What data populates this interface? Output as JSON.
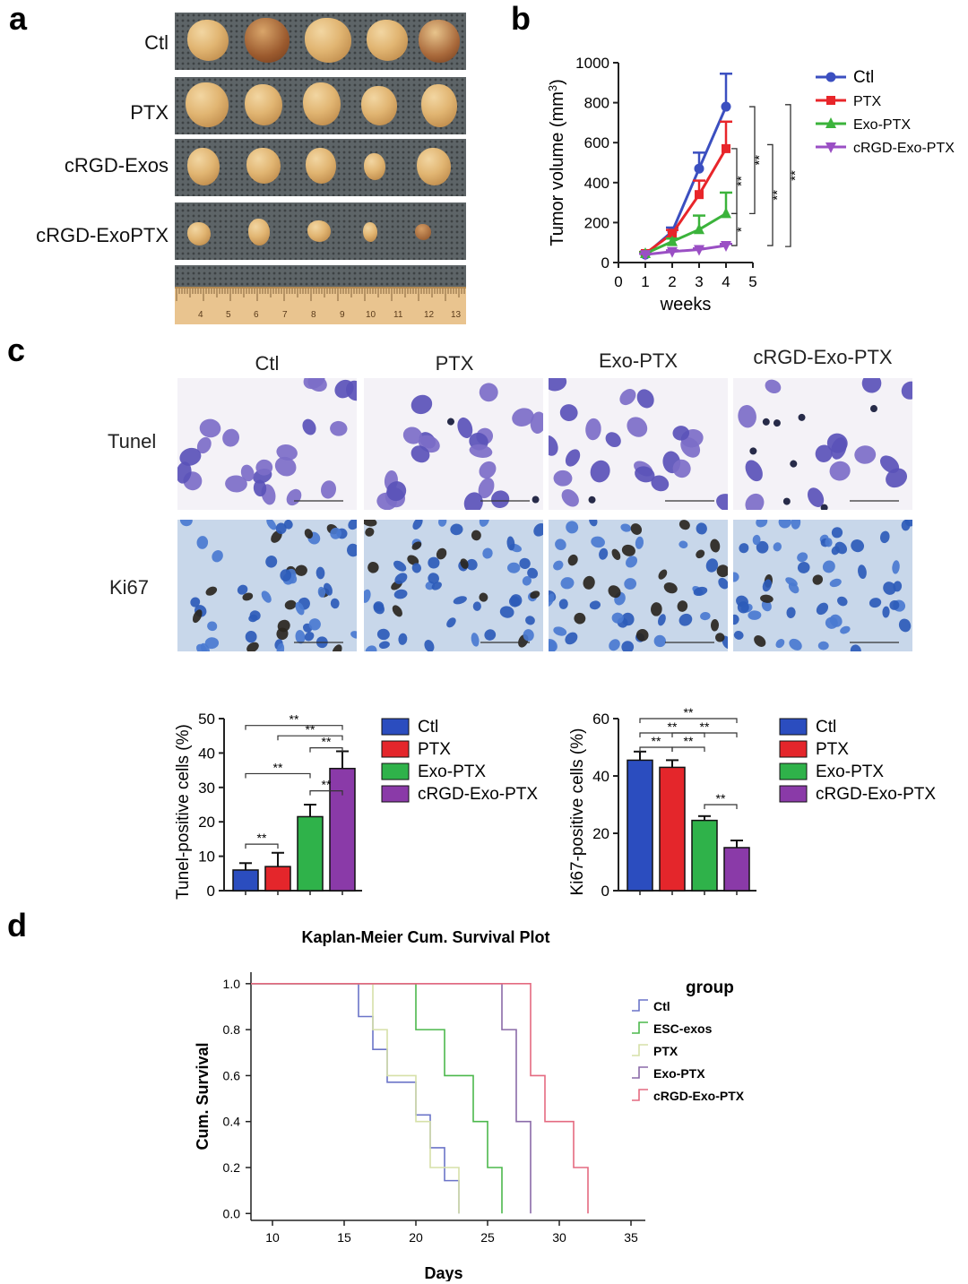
{
  "panels": {
    "a": "a",
    "b": "b",
    "c": "c",
    "d": "d"
  },
  "panel_a": {
    "rows": [
      "Ctl",
      "PTX",
      "cRGD-Exos",
      "cRGD-ExoPTX"
    ],
    "ruler_ticks": [
      "4",
      "5",
      "6",
      "7",
      "8",
      "9",
      "10",
      "11",
      "12",
      "13"
    ]
  },
  "panel_c_images": {
    "columns": [
      "Ctl",
      "PTX",
      "Exo-PTX",
      "cRGD-Exo-PTX"
    ],
    "rows": [
      "Tunel",
      "Ki67"
    ]
  },
  "chart_data": [
    {
      "id": "tumor-volume",
      "type": "line",
      "title": "",
      "xlabel": "weeks",
      "ylabel": "Tumor volume (mm³)",
      "ylabel_main": "Tumor volume (mm",
      "ylabel_sup": "3",
      "ylabel_end": ")",
      "xlim": [
        0,
        5
      ],
      "ylim": [
        0,
        1000
      ],
      "xticks": [
        "0",
        "1",
        "2",
        "3",
        "4",
        "5"
      ],
      "yticks": [
        "0",
        "200",
        "400",
        "600",
        "800",
        "1000"
      ],
      "x": [
        1,
        2,
        3,
        4
      ],
      "series": [
        {
          "name": "Ctl",
          "color": "#3b4fc0",
          "marker": "circle",
          "values": [
            40,
            155,
            470,
            780
          ],
          "errors": [
            8,
            20,
            80,
            165
          ]
        },
        {
          "name": "PTX",
          "color": "#e8252a",
          "marker": "square",
          "values": [
            45,
            145,
            340,
            570
          ],
          "errors": [
            8,
            18,
            70,
            135
          ]
        },
        {
          "name": "Exo-PTX",
          "color": "#3bb33b",
          "marker": "triangle-up",
          "values": [
            45,
            105,
            165,
            245
          ],
          "errors": [
            6,
            15,
            70,
            105
          ]
        },
        {
          "name": "cRGD-Exo-PTX",
          "color": "#9a4fc4",
          "marker": "triangle-down",
          "values": [
            40,
            55,
            65,
            85
          ],
          "errors": [
            4,
            6,
            6,
            8
          ]
        }
      ],
      "annotations": [
        "**",
        "*",
        "**",
        "**",
        "**"
      ]
    },
    {
      "id": "tunel-bar",
      "type": "bar",
      "title": "",
      "xlabel": "",
      "ylabel": "Tunel-positive cells (%)",
      "ylim": [
        0,
        50
      ],
      "yticks": [
        "0",
        "10",
        "20",
        "30",
        "40",
        "50"
      ],
      "categories": [
        "Ctl",
        "PTX",
        "Exo-PTX",
        "cRGD-Exo-PTX"
      ],
      "colors": [
        "#2b4dbf",
        "#e4262b",
        "#2fb24a",
        "#8a3aa8"
      ],
      "values": [
        6,
        7,
        21.5,
        35.5
      ],
      "errors": [
        2,
        4,
        3.5,
        5
      ],
      "annotations": [
        "**",
        "**",
        "**",
        "**",
        "**",
        "**"
      ]
    },
    {
      "id": "ki67-bar",
      "type": "bar",
      "title": "",
      "xlabel": "",
      "ylabel": "Ki67-positive cells (%)",
      "ylim": [
        0,
        60
      ],
      "yticks": [
        "0",
        "20",
        "40",
        "60"
      ],
      "categories": [
        "Ctl",
        "PTX",
        "Exo-PTX",
        "cRGD-Exo-PTX"
      ],
      "colors": [
        "#2b4dbf",
        "#e4262b",
        "#2fb24a",
        "#8a3aa8"
      ],
      "values": [
        45.5,
        43,
        24.5,
        15
      ],
      "errors": [
        3,
        2.5,
        1.5,
        2.5
      ],
      "annotations": [
        "**",
        "**",
        "**",
        "**",
        "**",
        "**"
      ]
    },
    {
      "id": "kaplan-meier",
      "type": "line",
      "title": "Kaplan-Meier Cum. Survival Plot",
      "xlabel": "Days",
      "ylabel": "Cum. Survival",
      "legend_title": "group",
      "xlim": [
        8.5,
        36
      ],
      "ylim": [
        -0.03,
        1.05
      ],
      "xticks": [
        "10",
        "15",
        "20",
        "25",
        "30",
        "35"
      ],
      "yticks": [
        "0.0",
        "0.2",
        "0.4",
        "0.6",
        "0.8",
        "1.0"
      ],
      "series": [
        {
          "name": "Ctl",
          "color": "#6b74c8",
          "steps": [
            [
              16,
              0.857
            ],
            [
              17,
              0.714
            ],
            [
              18,
              0.571
            ],
            [
              20,
              0.429
            ],
            [
              21,
              0.286
            ],
            [
              22,
              0.143
            ],
            [
              23,
              0
            ]
          ]
        },
        {
          "name": "ESC-exos",
          "color": "#4cb84c",
          "steps": [
            [
              20,
              0.8
            ],
            [
              22,
              0.6
            ],
            [
              24,
              0.4
            ],
            [
              25,
              0.2
            ],
            [
              26,
              0
            ]
          ]
        },
        {
          "name": "PTX",
          "color": "#d6e0a8",
          "steps": [
            [
              17,
              0.8
            ],
            [
              18,
              0.6
            ],
            [
              19,
              0.6
            ],
            [
              20,
              0.4
            ],
            [
              21,
              0.2
            ],
            [
              22,
              0.2
            ],
            [
              23,
              0
            ]
          ]
        },
        {
          "name": "Exo-PTX",
          "color": "#8a6aa8",
          "steps": [
            [
              26,
              0.8
            ],
            [
              27,
              0.4
            ],
            [
              28,
              0
            ]
          ]
        },
        {
          "name": "cRGD-Exo-PTX",
          "color": "#e46a80",
          "steps": [
            [
              28,
              0.6
            ],
            [
              29,
              0.4
            ],
            [
              31,
              0.2
            ],
            [
              32,
              0
            ]
          ]
        }
      ]
    }
  ]
}
